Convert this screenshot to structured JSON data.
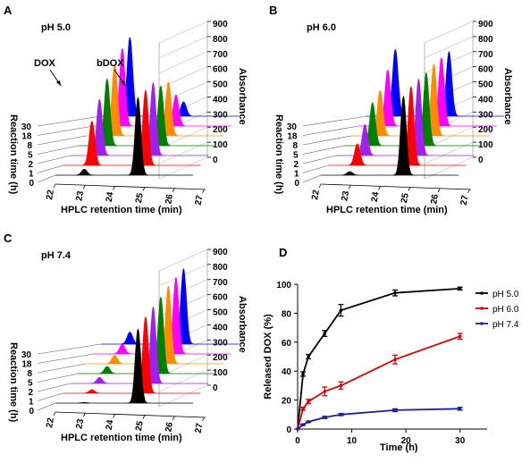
{
  "panel_3d_axes": {
    "reaction_time_label": "Reaction time (h)",
    "reaction_time_ticks": [
      "0",
      "1",
      "2",
      "5",
      "8",
      "18",
      "30"
    ],
    "retention_label": "HPLC retention time (min)",
    "retention_ticks": [
      "22",
      "23",
      "24",
      "25",
      "26",
      "27"
    ],
    "absorbance_label": "Absorbance",
    "absorbance_ticks": [
      "0",
      "100",
      "200",
      "300",
      "400",
      "500",
      "600",
      "700",
      "800",
      "900"
    ]
  },
  "trace_colors": [
    "#000000",
    "#ff0000",
    "#a020f0",
    "#008000",
    "#ff8c00",
    "#ff00ff",
    "#0000ff"
  ],
  "chart_data": [
    {
      "type": "line",
      "panel": "A",
      "subtitle": "pH 5.0",
      "annotations": [
        "DOX",
        "bDOX"
      ],
      "xlabel": "HPLC retention time (min)",
      "ylabel": "Absorbance",
      "zlabel": "Reaction time (h)",
      "x_ticks": [
        22,
        23,
        24,
        25,
        26,
        27
      ],
      "z_categories": [
        "0",
        "1",
        "2",
        "5",
        "8",
        "18",
        "30"
      ],
      "xlim": [
        22,
        27
      ],
      "ylim": [
        0,
        900
      ],
      "series": [
        {
          "name": "0",
          "peaks": [
            {
              "rt": 23.05,
              "height": 50
            },
            {
              "rt": 25.0,
              "height": 650
            }
          ]
        },
        {
          "name": "1",
          "peaks": [
            {
              "rt": 23.05,
              "height": 370
            },
            {
              "rt": 25.0,
              "height": 630
            }
          ]
        },
        {
          "name": "2",
          "peaks": [
            {
              "rt": 23.05,
              "height": 470
            },
            {
              "rt": 25.0,
              "height": 610
            }
          ]
        },
        {
          "name": "5",
          "peaks": [
            {
              "rt": 23.05,
              "height": 560
            },
            {
              "rt": 25.0,
              "height": 500
            }
          ]
        },
        {
          "name": "8",
          "peaks": [
            {
              "rt": 23.05,
              "height": 600
            },
            {
              "rt": 25.0,
              "height": 450
            }
          ]
        },
        {
          "name": "18",
          "peaks": [
            {
              "rt": 23.05,
              "height": 650
            },
            {
              "rt": 25.0,
              "height": 260
            }
          ]
        },
        {
          "name": "30",
          "peaks": [
            {
              "rt": 23.05,
              "height": 660
            },
            {
              "rt": 25.0,
              "height": 120
            }
          ]
        }
      ]
    },
    {
      "type": "line",
      "panel": "B",
      "subtitle": "pH 6.0",
      "xlabel": "HPLC retention time (min)",
      "ylabel": "Absorbance",
      "zlabel": "Reaction time (h)",
      "x_ticks": [
        22,
        23,
        24,
        25,
        26,
        27
      ],
      "z_categories": [
        "0",
        "1",
        "2",
        "5",
        "8",
        "18",
        "30"
      ],
      "xlim": [
        22,
        27
      ],
      "ylim": [
        0,
        900
      ],
      "series": [
        {
          "name": "0",
          "peaks": [
            {
              "rt": 23.05,
              "height": 30
            },
            {
              "rt": 25.0,
              "height": 660
            }
          ]
        },
        {
          "name": "1",
          "peaks": [
            {
              "rt": 23.05,
              "height": 180
            },
            {
              "rt": 25.0,
              "height": 660
            }
          ]
        },
        {
          "name": "2",
          "peaks": [
            {
              "rt": 23.05,
              "height": 260
            },
            {
              "rt": 25.0,
              "height": 640
            }
          ]
        },
        {
          "name": "5",
          "peaks": [
            {
              "rt": 23.05,
              "height": 360
            },
            {
              "rt": 25.0,
              "height": 610
            }
          ]
        },
        {
          "name": "8",
          "peaks": [
            {
              "rt": 23.05,
              "height": 380
            },
            {
              "rt": 25.0,
              "height": 600
            }
          ]
        },
        {
          "name": "18",
          "peaks": [
            {
              "rt": 23.05,
              "height": 470
            },
            {
              "rt": 25.0,
              "height": 570
            }
          ]
        },
        {
          "name": "30",
          "peaks": [
            {
              "rt": 23.05,
              "height": 560
            },
            {
              "rt": 25.0,
              "height": 540
            }
          ]
        }
      ]
    },
    {
      "type": "line",
      "panel": "C",
      "subtitle": "pH 7.4",
      "xlabel": "HPLC retention time (min)",
      "ylabel": "Absorbance",
      "zlabel": "Reaction time (h)",
      "x_ticks": [
        22,
        23,
        24,
        25,
        26,
        27
      ],
      "z_categories": [
        "0",
        "1",
        "2",
        "5",
        "8",
        "18",
        "30"
      ],
      "xlim": [
        22,
        27
      ],
      "ylim": [
        0,
        900
      ],
      "series": [
        {
          "name": "0",
          "peaks": [
            {
              "rt": 23.05,
              "height": 5
            },
            {
              "rt": 25.0,
              "height": 620
            }
          ]
        },
        {
          "name": "1",
          "peaks": [
            {
              "rt": 23.05,
              "height": 30
            },
            {
              "rt": 25.0,
              "height": 640
            }
          ]
        },
        {
          "name": "2",
          "peaks": [
            {
              "rt": 23.05,
              "height": 50
            },
            {
              "rt": 25.0,
              "height": 640
            }
          ]
        },
        {
          "name": "5",
          "peaks": [
            {
              "rt": 23.05,
              "height": 60
            },
            {
              "rt": 25.0,
              "height": 640
            }
          ]
        },
        {
          "name": "8",
          "peaks": [
            {
              "rt": 23.05,
              "height": 70
            },
            {
              "rt": 25.0,
              "height": 650
            }
          ]
        },
        {
          "name": "18",
          "peaks": [
            {
              "rt": 23.05,
              "height": 80
            },
            {
              "rt": 25.0,
              "height": 640
            }
          ]
        },
        {
          "name": "30",
          "peaks": [
            {
              "rt": 23.05,
              "height": 100
            },
            {
              "rt": 25.0,
              "height": 630
            }
          ]
        }
      ]
    },
    {
      "type": "line",
      "panel": "D",
      "xlabel": "Time (h)",
      "ylabel": "Released DOX (%)",
      "xlim": [
        0,
        35
      ],
      "ylim": [
        0,
        100
      ],
      "x_ticks": [
        0,
        10,
        20,
        30
      ],
      "y_ticks": [
        0,
        20,
        40,
        60,
        80,
        100
      ],
      "legend": "right",
      "series": [
        {
          "name": "pH 5.0",
          "color": "#000000",
          "x": [
            0,
            1,
            2,
            5,
            8,
            18,
            30
          ],
          "y": [
            0,
            38,
            50,
            66,
            82,
            94,
            97
          ],
          "err": [
            0,
            1.5,
            1.5,
            2,
            4,
            2,
            1
          ]
        },
        {
          "name": "pH 6.0",
          "color": "#dd0000",
          "x": [
            0,
            1,
            2,
            5,
            8,
            18,
            30
          ],
          "y": [
            0,
            14,
            19,
            26,
            30,
            48,
            64
          ],
          "err": [
            0,
            1,
            1.5,
            3,
            2.5,
            3,
            2
          ]
        },
        {
          "name": "pH 7.4",
          "color": "#1f1fa0",
          "x": [
            0,
            1,
            2,
            5,
            8,
            18,
            30
          ],
          "y": [
            0,
            3,
            5,
            8,
            10,
            13,
            14
          ],
          "err": [
            0,
            0.5,
            0.5,
            0.8,
            0.8,
            1,
            1
          ]
        }
      ]
    }
  ]
}
